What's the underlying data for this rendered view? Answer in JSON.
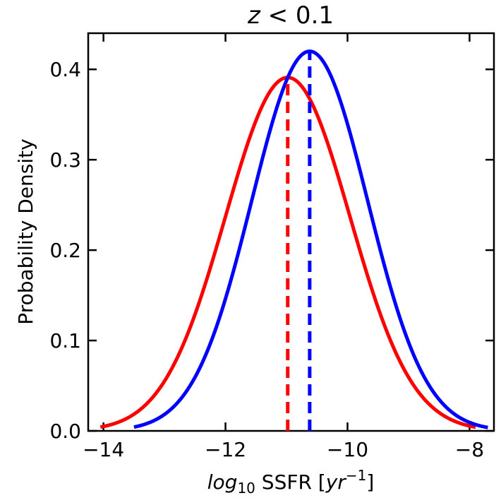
{
  "chart_data": {
    "type": "line",
    "title": {
      "italic": "z",
      "rest": " < 0.1"
    },
    "xlabel": {
      "prefix_italic": "log",
      "subscript": "10",
      "middle": " SSFR [",
      "unit_italic": "yr",
      "superscript": "−1",
      "suffix": "]"
    },
    "ylabel": "Probability Density",
    "xlim": [
      -14.25,
      -7.6
    ],
    "ylim": [
      0.0,
      0.44
    ],
    "xticks": [
      -14,
      -12,
      -10,
      -8
    ],
    "xtick_labels": [
      "−14",
      "−12",
      "−10",
      "−8"
    ],
    "yticks": [
      0.0,
      0.1,
      0.2,
      0.3,
      0.4
    ],
    "ytick_labels": [
      "0.0",
      "0.1",
      "0.2",
      "0.3",
      "0.4"
    ],
    "series": [
      {
        "name": "red-distribution",
        "color": "#ff0000",
        "mean": -10.98,
        "sigma": 1.02,
        "x_range": [
          -14.05,
          -7.9
        ],
        "peak": 0.391
      },
      {
        "name": "blue-distribution",
        "color": "#0000ff",
        "mean": -10.62,
        "sigma": 0.95,
        "x_range": [
          -13.5,
          -7.7
        ],
        "peak": 0.42
      }
    ],
    "mean_lines": [
      {
        "name": "red-mean-line",
        "color": "#ff0000",
        "x": -10.98,
        "style": "dashed"
      },
      {
        "name": "blue-mean-line",
        "color": "#0000ff",
        "x": -10.62,
        "style": "dashed"
      }
    ]
  }
}
